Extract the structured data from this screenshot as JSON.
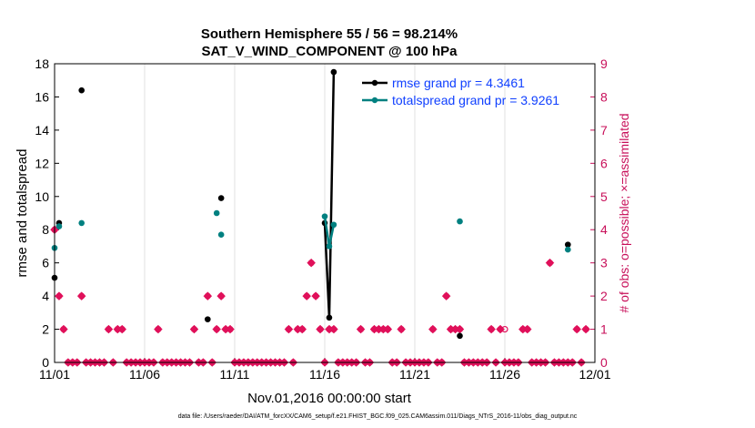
{
  "chart_data": {
    "type": "scatter",
    "title_line1": "Southern Hemisphere 55 / 56 = 98.214%",
    "title_line2": "SAT_V_WIND_COMPONENT @ 100 hPa",
    "xlabel": "Nov.01,2016 00:00:00 start",
    "ylabel_left": "rmse and totalspread",
    "ylabel_right": "# of obs: o=possible; ×=assimilated",
    "footnote": "data file: /Users/raeder/DAI/ATM_forcXX/CAM6_setup/f.e21.FHIST_BGC.f09_025.CAM6assim.011/Diags_NTrS_2016-11/obs_diag_output.nc",
    "xlim": [
      0,
      30
    ],
    "ylim_left": [
      0,
      18
    ],
    "ylim_right": [
      0,
      9
    ],
    "x_ticks": [
      0,
      5,
      10,
      15,
      20,
      25,
      30
    ],
    "x_tick_labels": [
      "11/01",
      "11/06",
      "11/11",
      "11/16",
      "11/21",
      "11/26",
      "12/01"
    ],
    "y_left_ticks": [
      0,
      2,
      4,
      6,
      8,
      10,
      12,
      14,
      16,
      18
    ],
    "y_right_ticks": [
      0,
      1,
      2,
      3,
      4,
      5,
      6,
      7,
      8,
      9
    ],
    "grid": true,
    "legend": {
      "placement": "top-right",
      "entries": [
        {
          "name": "rmse grand pr = 4.3461",
          "color": "#000000"
        },
        {
          "name": "totalspread grand pr = 3.9261",
          "color": "#008080"
        }
      ]
    },
    "colors": {
      "rmse": "#000000",
      "totalspread": "#008080",
      "obs": "#e0105a",
      "axis_right": "#c8105a",
      "legend_text": "#1040ff"
    },
    "series": [
      {
        "name": "rmse",
        "x": [
          0.0,
          0.25,
          1.5,
          8.5,
          9.25,
          15.0,
          15.25,
          15.5,
          22.5,
          28.5
        ],
        "y": [
          5.1,
          8.4,
          16.4,
          2.6,
          9.9,
          8.4,
          2.7,
          17.5,
          1.6,
          7.1
        ],
        "lines": [
          [
            5,
            6,
            7
          ]
        ]
      },
      {
        "name": "totalspread",
        "x": [
          0.0,
          0.25,
          1.5,
          9.0,
          9.25,
          15.0,
          15.25,
          15.5,
          22.5,
          28.5
        ],
        "y": [
          6.9,
          8.2,
          8.4,
          9.0,
          7.7,
          8.8,
          7.0,
          8.3,
          8.5,
          6.8
        ],
        "lines": [
          [
            5,
            6,
            7
          ]
        ]
      }
    ],
    "obs_possible": {
      "x": [
        0.0,
        0.25,
        0.5,
        0.75,
        1.0,
        1.25,
        1.5,
        1.75,
        2.0,
        2.25,
        2.5,
        2.75,
        3.0,
        3.25,
        3.5,
        3.75,
        4.0,
        4.25,
        4.5,
        4.75,
        5.0,
        5.25,
        5.5,
        5.75,
        6.0,
        6.25,
        6.5,
        6.75,
        7.0,
        7.25,
        7.5,
        7.75,
        8.0,
        8.25,
        8.5,
        8.75,
        9.0,
        9.25,
        9.5,
        9.75,
        10.0,
        10.25,
        10.5,
        10.75,
        11.0,
        11.25,
        11.5,
        11.75,
        12.0,
        12.25,
        12.5,
        12.75,
        13.0,
        13.25,
        13.5,
        13.75,
        14.0,
        14.25,
        14.5,
        14.75,
        15.0,
        15.25,
        15.5,
        15.75,
        16.0,
        16.25,
        16.5,
        16.75,
        17.0,
        17.25,
        17.5,
        17.75,
        18.0,
        18.25,
        18.5,
        18.75,
        19.0,
        19.25,
        19.5,
        19.75,
        20.0,
        20.25,
        20.5,
        20.75,
        21.0,
        21.25,
        21.5,
        21.75,
        22.0,
        22.25,
        22.5,
        22.75,
        23.0,
        23.25,
        23.5,
        23.75,
        24.0,
        24.25,
        24.5,
        24.75,
        25.0,
        25.25,
        25.5,
        25.75,
        26.0,
        26.25,
        26.5,
        26.75,
        27.0,
        27.25,
        27.5,
        27.75,
        28.0,
        28.25,
        28.5,
        28.75,
        29.0,
        29.25,
        29.5
      ],
      "y": [
        4,
        2,
        1,
        0,
        0,
        0,
        2,
        0,
        0,
        0,
        0,
        0,
        1,
        0,
        1,
        1,
        0,
        0,
        0,
        0,
        0,
        0,
        0,
        1,
        0,
        0,
        0,
        0,
        0,
        0,
        0,
        1,
        0,
        0,
        2,
        0,
        1,
        2,
        1,
        1,
        0,
        0,
        0,
        0,
        0,
        0,
        0,
        0,
        0,
        0,
        0,
        0,
        1,
        0,
        1,
        1,
        2,
        3,
        2,
        1,
        0,
        1,
        1,
        0,
        0,
        0,
        0,
        0,
        1,
        0,
        0,
        1,
        1,
        1,
        1,
        0,
        0,
        1,
        0,
        0,
        0,
        0,
        0,
        0,
        1,
        0,
        0,
        2,
        1,
        1,
        1,
        0,
        0,
        0,
        0,
        0,
        0,
        1,
        0,
        1,
        1,
        0,
        0,
        0,
        1,
        1,
        0,
        0,
        0,
        0,
        3,
        0,
        0,
        0,
        0,
        0,
        1,
        0,
        1
      ]
    },
    "obs_assimilated": {
      "x": [
        0.0,
        0.25,
        0.5,
        0.75,
        1.0,
        1.25,
        1.5,
        1.75,
        2.0,
        2.25,
        2.5,
        2.75,
        3.0,
        3.25,
        3.5,
        3.75,
        4.0,
        4.25,
        4.5,
        4.75,
        5.0,
        5.25,
        5.5,
        5.75,
        6.0,
        6.25,
        6.5,
        6.75,
        7.0,
        7.25,
        7.5,
        7.75,
        8.0,
        8.25,
        8.5,
        8.75,
        9.0,
        9.25,
        9.5,
        9.75,
        10.0,
        10.25,
        10.5,
        10.75,
        11.0,
        11.25,
        11.5,
        11.75,
        12.0,
        12.25,
        12.5,
        12.75,
        13.0,
        13.25,
        13.5,
        13.75,
        14.0,
        14.25,
        14.5,
        14.75,
        15.0,
        15.25,
        15.5,
        15.75,
        16.0,
        16.25,
        16.5,
        16.75,
        17.0,
        17.25,
        17.5,
        17.75,
        18.0,
        18.25,
        18.5,
        18.75,
        19.0,
        19.25,
        19.5,
        19.75,
        20.0,
        20.25,
        20.5,
        20.75,
        21.0,
        21.25,
        21.5,
        21.75,
        22.0,
        22.25,
        22.5,
        22.75,
        23.0,
        23.25,
        23.5,
        23.75,
        24.0,
        24.25,
        24.5,
        24.75,
        25.0,
        25.25,
        25.5,
        25.75,
        26.0,
        26.25,
        26.5,
        26.75,
        27.0,
        27.25,
        27.5,
        27.75,
        28.0,
        28.25,
        28.5,
        28.75,
        29.0,
        29.25,
        29.5
      ],
      "y": [
        4,
        2,
        1,
        0,
        0,
        0,
        2,
        0,
        0,
        0,
        0,
        0,
        1,
        0,
        1,
        1,
        0,
        0,
        0,
        0,
        0,
        0,
        0,
        1,
        0,
        0,
        0,
        0,
        0,
        0,
        0,
        1,
        0,
        0,
        2,
        0,
        1,
        2,
        1,
        1,
        0,
        0,
        0,
        0,
        0,
        0,
        0,
        0,
        0,
        0,
        0,
        0,
        1,
        0,
        1,
        1,
        2,
        3,
        2,
        1,
        0,
        1,
        1,
        0,
        0,
        0,
        0,
        0,
        1,
        0,
        0,
        1,
        1,
        1,
        1,
        0,
        0,
        1,
        0,
        0,
        0,
        0,
        0,
        0,
        1,
        0,
        0,
        2,
        1,
        1,
        1,
        0,
        0,
        0,
        0,
        0,
        0,
        1,
        0,
        1,
        0,
        0,
        0,
        0,
        1,
        1,
        0,
        0,
        0,
        0,
        3,
        0,
        0,
        0,
        0,
        0,
        1,
        0,
        1
      ]
    }
  }
}
